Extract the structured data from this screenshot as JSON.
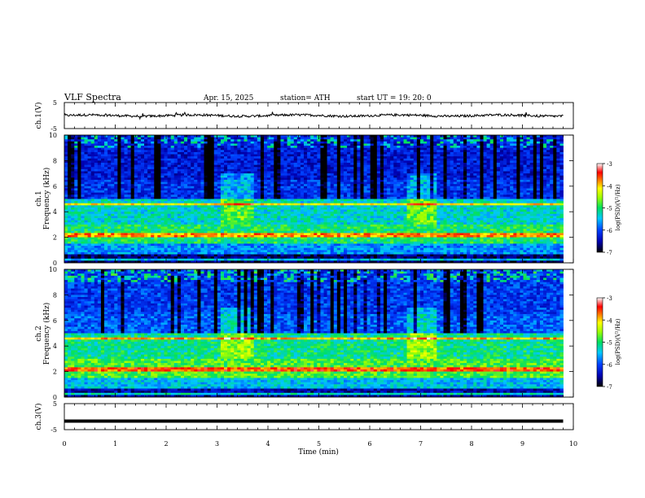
{
  "header": {
    "title": "VLF  Spectra",
    "date": "Apr. 15, 2025",
    "station": "station= ATH",
    "start_ut": "start  UT  =   19: 20: 0"
  },
  "chart_data": [
    {
      "type": "line",
      "panel": "ch1",
      "ylabel": "ch.1(V)",
      "ylim": [
        -5,
        5
      ],
      "yticks": [
        "5",
        "-5"
      ],
      "xlim": [
        0,
        10
      ],
      "series": [
        {
          "values_description_free": true,
          "x_range": [
            0,
            9.8
          ],
          "mean": 0,
          "peak_to_peak": 1.5
        }
      ]
    },
    {
      "type": "heatmap",
      "panel": "ch1-spectrogram",
      "ylabel_channel": "ch.1",
      "ylabel": "Frequency  (kHz)",
      "ylim": [
        0,
        10
      ],
      "yticks": [
        "10",
        "8",
        "6",
        "4",
        "2",
        "0"
      ],
      "xlim": [
        0,
        9.8
      ],
      "colorbar": {
        "label": "log(PSD)(V²/Hz)",
        "range": [
          -7,
          -3
        ],
        "ticks": [
          "-3",
          "-4",
          "-5",
          "-6",
          "-7"
        ]
      }
    },
    {
      "type": "heatmap",
      "panel": "ch2-spectrogram",
      "ylabel_channel": "ch.2",
      "ylabel": "Frequency  (kHz)",
      "ylim": [
        0,
        10
      ],
      "yticks": [
        "10",
        "8",
        "6",
        "4",
        "2",
        "0"
      ],
      "xlim": [
        0,
        9.8
      ],
      "colorbar": {
        "label": "log(PSD)(V²/Hz)",
        "range": [
          -7,
          -3
        ],
        "ticks": [
          "-3",
          "-4",
          "-5",
          "-6",
          "-7"
        ]
      }
    },
    {
      "type": "line",
      "panel": "ch3",
      "ylabel": "ch.3(V)",
      "ylim": [
        -5,
        5
      ],
      "yticks": [
        "5",
        "-5"
      ],
      "xlabel": "Time  (min)",
      "xlim": [
        0,
        10
      ],
      "xticks": [
        "0",
        "1",
        "2",
        "3",
        "4",
        "5",
        "6",
        "7",
        "8",
        "9",
        "10"
      ],
      "series": [
        {
          "x_range": [
            0,
            9.8
          ],
          "constant_value": -1.7
        }
      ]
    }
  ]
}
